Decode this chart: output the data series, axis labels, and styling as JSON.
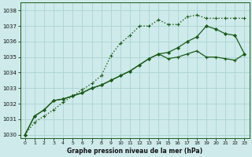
{
  "title": "Graphe pression niveau de la mer (hPa)",
  "background_color": "#ceeaea",
  "grid_color": "#aad4d4",
  "line_color": "#1a5c1a",
  "xlim": [
    -0.5,
    23.5
  ],
  "ylim": [
    1029.8,
    1038.5
  ],
  "yticks": [
    1030,
    1031,
    1032,
    1033,
    1034,
    1035,
    1036,
    1037,
    1038
  ],
  "xticks": [
    0,
    1,
    2,
    3,
    4,
    5,
    6,
    7,
    8,
    9,
    10,
    11,
    12,
    13,
    14,
    15,
    16,
    17,
    18,
    19,
    20,
    21,
    22,
    23
  ],
  "series": [
    [
      1030.0,
      1030.8,
      1031.2,
      1031.6,
      1032.1,
      1032.5,
      1032.9,
      1033.3,
      1033.8,
      1035.1,
      1035.9,
      1036.4,
      1037.0,
      1037.0,
      1037.4,
      1037.1,
      1037.1,
      1037.6,
      1037.7,
      1037.5,
      1037.5,
      1037.5,
      1037.5,
      1037.5
    ],
    [
      1030.0,
      1031.2,
      1031.6,
      1032.2,
      1032.3,
      1032.5,
      1032.7,
      1033.0,
      1033.2,
      1033.5,
      1033.8,
      1034.1,
      1034.5,
      1034.9,
      1035.2,
      1035.3,
      1035.6,
      1036.0,
      1036.3,
      1037.0,
      1036.8,
      1036.5,
      1036.4,
      1035.2
    ],
    [
      1030.0,
      1031.2,
      1031.6,
      1032.2,
      1032.3,
      1032.5,
      1032.7,
      1033.0,
      1033.2,
      1033.5,
      1033.8,
      1034.1,
      1034.5,
      1034.9,
      1035.2,
      1034.9,
      1035.0,
      1035.2,
      1035.4,
      1035.0,
      1035.0,
      1034.9,
      1034.8,
      1035.2
    ]
  ],
  "series_styles": [
    {
      "linestyle": "dotted",
      "marker": "+",
      "markersize": 3.5,
      "linewidth": 1.0,
      "markeredgewidth": 0.8
    },
    {
      "linestyle": "solid",
      "marker": "D",
      "markersize": 2.0,
      "linewidth": 0.9,
      "markeredgewidth": 0.6
    },
    {
      "linestyle": "solid",
      "marker": "+",
      "markersize": 3.5,
      "linewidth": 0.9,
      "markeredgewidth": 0.8
    }
  ]
}
